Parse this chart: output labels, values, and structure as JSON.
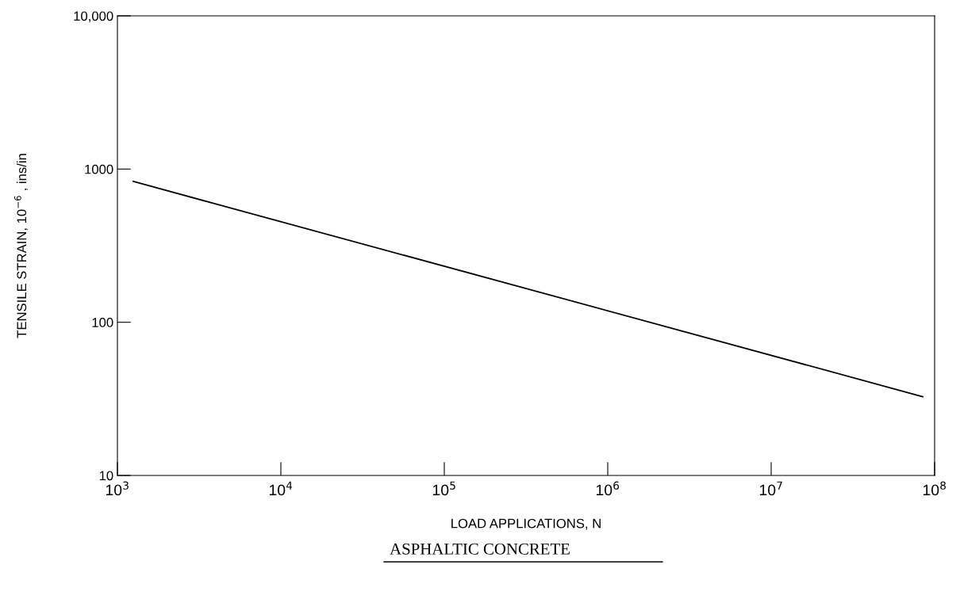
{
  "chart_data": {
    "type": "line",
    "xlabel": "LOAD APPLICATIONS, N",
    "ylabel": "TENSILE STRAIN, 10$^{−6}$ , ins/in",
    "x": [
      1250,
      84500000
    ],
    "series": [
      {
        "color": "#000000",
        "values": [
          830,
          32.7
        ]
      }
    ],
    "log": "xy",
    "xlim": [
      1000,
      100000000
    ],
    "ylim": [
      10,
      10000
    ],
    "xticks": [
      {
        "value": 1000,
        "label": "10$^{3}$"
      },
      {
        "value": 10000,
        "label": "10$^{4}$"
      },
      {
        "value": 100000,
        "label": "10$^{5}$"
      },
      {
        "value": 1000000,
        "label": "10$^{6}$"
      },
      {
        "value": 10000000,
        "label": "10$^{7}$"
      },
      {
        "value": 100000000,
        "label": "10$^{8}$"
      }
    ],
    "yticks": [
      10,
      100,
      1000,
      {
        "value": 10000,
        "label": "10,000"
      }
    ],
    "grid": false,
    "legend": false,
    "marker": "none",
    "line_style": "solid",
    "annotations": [
      "ASPHALTIC CONCRETE"
    ]
  }
}
